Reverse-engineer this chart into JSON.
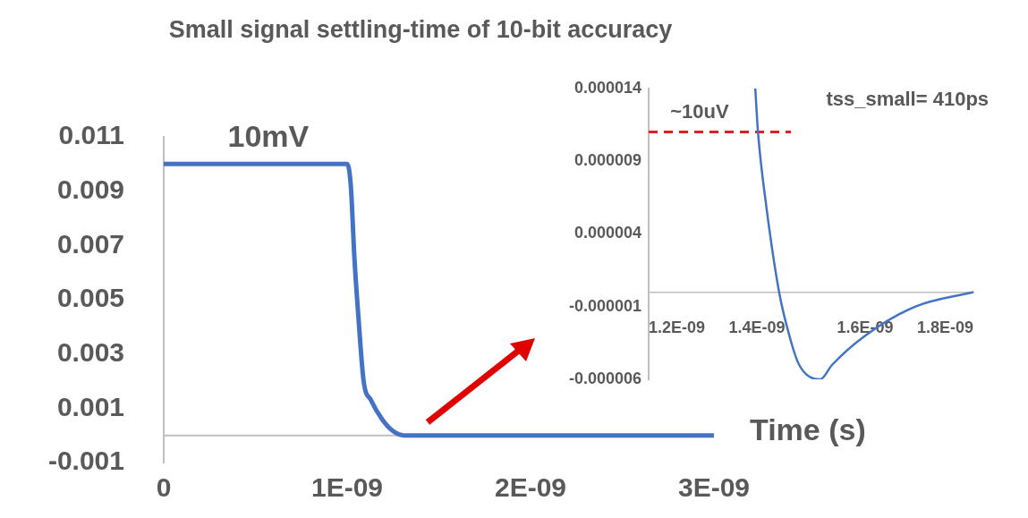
{
  "chart_data": [
    {
      "type": "line",
      "title": "Small signal settling-time of 10-bit accuracy",
      "xlabel": "Time (s)",
      "color": "#4472c4",
      "marker": "none",
      "grid": false,
      "legend": false,
      "x": [
        0,
        1e-09,
        1.02e-09,
        1.04e-09,
        1.06e-09,
        1.09e-09,
        1.13e-09,
        1.19e-09,
        1.25e-09,
        1.31e-09,
        1.5e-09,
        3e-09
      ],
      "values": [
        0.01,
        0.01,
        0.0092,
        0.0065,
        0.0045,
        0.002,
        0.0013,
        0.0006,
        0.00016,
        0,
        0,
        0
      ],
      "xlim": [
        0,
        3e-09
      ],
      "xticks": [
        0,
        {
          "value": 1e-09,
          "label": "1E-09"
        },
        {
          "value": 2e-09,
          "label": "2E-09"
        },
        {
          "value": 3e-09,
          "label": "3E-09"
        }
      ],
      "ylim": [
        -0.001,
        0.011
      ],
      "yticks": [
        -0.001,
        0.001,
        0.003,
        0.005,
        0.007,
        0.009,
        0.011
      ],
      "annotations": [
        "10mV"
      ]
    },
    {
      "type": "line",
      "marker": "none",
      "grid": false,
      "legend": false,
      "series": [
        {
          "color": "#4472c4",
          "x": [
            1.397e-09,
            1.402e-09,
            1.417e-09,
            1.441e-09,
            1.46e-09,
            1.478e-09,
            1.517e-09,
            1.539e-09,
            1.6e-09,
            1.693e-09,
            1.8e-09
          ],
          "values": [
            1.4e-05,
            1.1e-05,
            6e-06,
            0,
            -3e-06,
            -5e-06,
            -6e-06,
            -5e-06,
            -3e-06,
            -1e-06,
            0
          ]
        },
        {
          "color": "#e02020",
          "line_style": "dashed",
          "x": [
            1.2e-09,
            1.463e-09
          ],
          "values": [
            1.1e-05,
            1.1e-05
          ]
        }
      ],
      "xlim": [
        1.2e-09,
        1.8e-09
      ],
      "xticks": [
        {
          "value": 1.2e-09,
          "label": "1.2E-09"
        },
        {
          "value": 1.4e-09,
          "label": "1.4E-09"
        },
        {
          "value": 1.6e-09,
          "label": "1.6E-09"
        },
        {
          "value": 1.8e-09,
          "label": "1.8E-09"
        }
      ],
      "ylim": [
        -6e-06,
        1.4e-05
      ],
      "yticks": [
        {
          "value": -6e-06,
          "label": "-0.000006"
        },
        {
          "value": -1e-06,
          "label": "-0.000001"
        },
        {
          "value": 4e-06,
          "label": "0.000004"
        },
        {
          "value": 9e-06,
          "label": "0.000009"
        },
        {
          "value": 1.4e-05,
          "label": "0.000014"
        }
      ],
      "annotations": [
        "~10uV",
        "tss_small= 410ps"
      ]
    }
  ]
}
